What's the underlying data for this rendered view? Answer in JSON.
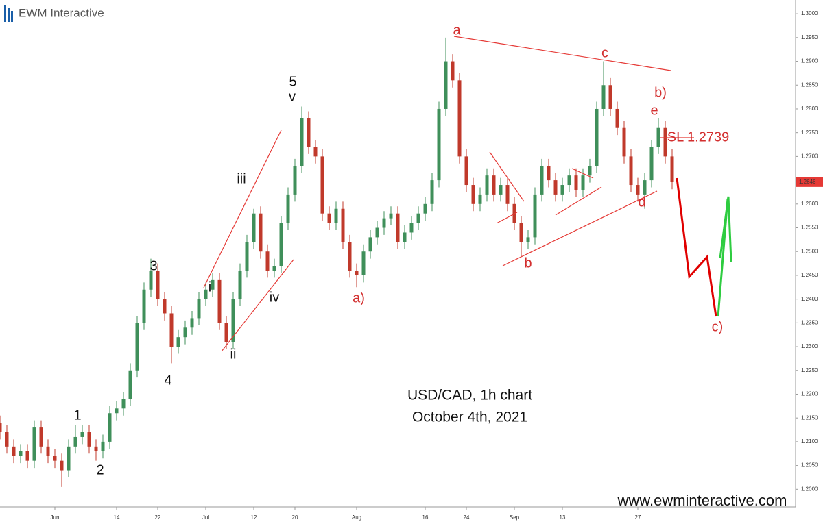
{
  "chart_data": {
    "type": "candlestick",
    "brand": "EWM Interactive",
    "title": "USD/CAD, 1h chart",
    "subtitle": "October 4th, 2021",
    "website": "www.ewminteractive.com",
    "up_color": "#3f8f5a",
    "down_color": "#c0392b",
    "xlim": [
      -8,
      108
    ],
    "xticks": [
      {
        "value": 0,
        "label": "Jun"
      },
      {
        "value": 9,
        "label": "14"
      },
      {
        "value": 15,
        "label": "22"
      },
      {
        "value": 22,
        "label": "Jul"
      },
      {
        "value": 29,
        "label": "12"
      },
      {
        "value": 35,
        "label": "20"
      },
      {
        "value": 44,
        "label": "Aug"
      },
      {
        "value": 54,
        "label": "16"
      },
      {
        "value": 60,
        "label": "24"
      },
      {
        "value": 67,
        "label": "Sep"
      },
      {
        "value": 74,
        "label": "13"
      },
      {
        "value": 85,
        "label": "27"
      }
    ],
    "ylim": [
      1.1963,
      1.3029
    ],
    "yticks": [
      {
        "value": 1.2,
        "label": "1.2000"
      },
      {
        "value": 1.205,
        "label": "1.2050"
      },
      {
        "value": 1.21,
        "label": "1.2100"
      },
      {
        "value": 1.215,
        "label": "1.2150"
      },
      {
        "value": 1.22,
        "label": "1.2200"
      },
      {
        "value": 1.225,
        "label": "1.2250"
      },
      {
        "value": 1.23,
        "label": "1.2300"
      },
      {
        "value": 1.235,
        "label": "1.2350"
      },
      {
        "value": 1.24,
        "label": "1.2400"
      },
      {
        "value": 1.245,
        "label": "1.2450"
      },
      {
        "value": 1.25,
        "label": "1.2500"
      },
      {
        "value": 1.255,
        "label": "1.2550"
      },
      {
        "value": 1.26,
        "label": "1.2600"
      },
      {
        "value": 1.265,
        "label": "1.2650"
      },
      {
        "value": 1.27,
        "label": "1.2700"
      },
      {
        "value": 1.275,
        "label": "1.2750"
      },
      {
        "value": 1.28,
        "label": "1.2800"
      },
      {
        "value": 1.285,
        "label": "1.2850"
      },
      {
        "value": 1.29,
        "label": "1.2900"
      },
      {
        "value": 1.295,
        "label": "1.2950"
      },
      {
        "value": 1.3,
        "label": "1.3000"
      }
    ],
    "x": [
      -8,
      -7,
      -6,
      -5,
      -4,
      -3,
      -2,
      -1,
      0,
      1,
      2,
      3,
      4,
      5,
      6,
      7,
      8,
      9,
      10,
      11,
      12,
      13,
      14,
      15,
      16,
      17,
      18,
      19,
      20,
      21,
      22,
      23,
      24,
      25,
      26,
      27,
      28,
      29,
      30,
      31,
      32,
      33,
      34,
      35,
      36,
      37,
      38,
      39,
      40,
      41,
      42,
      43,
      44,
      45,
      46,
      47,
      48,
      49,
      50,
      51,
      52,
      53,
      54,
      55,
      56,
      57,
      58,
      59,
      60,
      61,
      62,
      63,
      64,
      65,
      66,
      67,
      68,
      69,
      70,
      71,
      72,
      73,
      74,
      75,
      76,
      77,
      78,
      79,
      80,
      81,
      82,
      83,
      84,
      85,
      86,
      87,
      88,
      89,
      90
    ],
    "open": [
      1.214,
      1.212,
      1.209,
      1.207,
      1.208,
      1.206,
      1.213,
      1.209,
      1.207,
      1.206,
      1.204,
      1.209,
      1.211,
      1.212,
      1.209,
      1.208,
      1.21,
      1.216,
      1.217,
      1.219,
      1.225,
      1.235,
      1.242,
      1.246,
      1.24,
      1.237,
      1.23,
      1.232,
      1.234,
      1.236,
      1.24,
      1.242,
      1.244,
      1.235,
      1.231,
      1.24,
      1.246,
      1.252,
      1.258,
      1.25,
      1.246,
      1.247,
      1.256,
      1.262,
      1.268,
      1.278,
      1.272,
      1.27,
      1.258,
      1.256,
      1.259,
      1.252,
      1.246,
      1.245,
      1.25,
      1.253,
      1.255,
      1.257,
      1.258,
      1.252,
      1.254,
      1.256,
      1.258,
      1.26,
      1.265,
      1.28,
      1.29,
      1.286,
      1.27,
      1.264,
      1.26,
      1.262,
      1.266,
      1.262,
      1.264,
      1.26,
      1.256,
      1.252,
      1.253,
      1.262,
      1.268,
      1.265,
      1.262,
      1.264,
      1.266,
      1.263,
      1.266,
      1.268,
      1.28,
      1.285,
      1.28,
      1.276,
      1.27,
      1.264,
      1.262,
      1.265,
      1.272,
      1.276,
      1.27
    ],
    "high": [
      1.2155,
      1.2135,
      1.2105,
      1.2095,
      1.2095,
      1.2145,
      1.2145,
      1.2105,
      1.2085,
      1.2075,
      1.2105,
      1.2135,
      1.2135,
      1.2135,
      1.2105,
      1.2115,
      1.2175,
      1.2185,
      1.2205,
      1.2265,
      1.2365,
      1.2435,
      1.2485,
      1.2475,
      1.2415,
      1.2385,
      1.2335,
      1.2355,
      1.2375,
      1.2415,
      1.2435,
      1.2455,
      1.2455,
      1.2365,
      1.2415,
      1.2475,
      1.2535,
      1.259,
      1.2595,
      1.2515,
      1.2485,
      1.2575,
      1.2635,
      1.2695,
      1.2805,
      1.2795,
      1.2735,
      1.2715,
      1.2595,
      1.2605,
      1.2605,
      1.2535,
      1.2475,
      1.2515,
      1.2545,
      1.2565,
      1.2585,
      1.2595,
      1.2595,
      1.2555,
      1.2575,
      1.2595,
      1.2615,
      1.2665,
      1.2815,
      1.295,
      1.2915,
      1.2875,
      1.2715,
      1.2655,
      1.2635,
      1.2675,
      1.2675,
      1.2655,
      1.2655,
      1.2615,
      1.2575,
      1.2545,
      1.2635,
      1.2695,
      1.2695,
      1.2665,
      1.2655,
      1.2675,
      1.2675,
      1.2675,
      1.2695,
      1.2815,
      1.29,
      1.2865,
      1.2815,
      1.2775,
      1.2715,
      1.2655,
      1.2665,
      1.2735,
      1.278,
      1.2775,
      1.2715
    ],
    "low": [
      1.2105,
      1.2075,
      1.2055,
      1.2055,
      1.2045,
      1.2045,
      1.2075,
      1.2055,
      1.2045,
      1.2005,
      1.2025,
      1.2075,
      1.2095,
      1.2075,
      1.206,
      1.2065,
      1.2085,
      1.2145,
      1.2155,
      1.2175,
      1.2235,
      1.2335,
      1.2405,
      1.2385,
      1.2355,
      1.2265,
      1.2285,
      1.2305,
      1.2325,
      1.2345,
      1.2385,
      1.2405,
      1.2335,
      1.2295,
      1.2295,
      1.2385,
      1.2445,
      1.2505,
      1.2485,
      1.2445,
      1.2445,
      1.2455,
      1.2545,
      1.2605,
      1.2665,
      1.2705,
      1.2685,
      1.2565,
      1.2545,
      1.2545,
      1.2505,
      1.2445,
      1.2425,
      1.2435,
      1.2485,
      1.2515,
      1.2535,
      1.2555,
      1.2505,
      1.2505,
      1.2525,
      1.2545,
      1.2565,
      1.2585,
      1.2635,
      1.2785,
      1.2845,
      1.2685,
      1.2625,
      1.2585,
      1.2585,
      1.2605,
      1.2605,
      1.2605,
      1.2585,
      1.2545,
      1.249,
      1.2505,
      1.2515,
      1.2605,
      1.2635,
      1.2605,
      1.2605,
      1.2625,
      1.2615,
      1.2615,
      1.2645,
      1.2665,
      1.2785,
      1.2785,
      1.2745,
      1.2685,
      1.2625,
      1.2605,
      1.259,
      1.2635,
      1.2705,
      1.2685,
      1.2631
    ],
    "close": [
      1.212,
      1.209,
      1.207,
      1.208,
      1.206,
      1.213,
      1.209,
      1.207,
      1.206,
      1.204,
      1.209,
      1.211,
      1.212,
      1.209,
      1.208,
      1.21,
      1.216,
      1.217,
      1.219,
      1.225,
      1.235,
      1.242,
      1.246,
      1.24,
      1.237,
      1.23,
      1.232,
      1.234,
      1.236,
      1.24,
      1.242,
      1.244,
      1.235,
      1.231,
      1.24,
      1.246,
      1.252,
      1.258,
      1.25,
      1.246,
      1.247,
      1.256,
      1.262,
      1.268,
      1.278,
      1.272,
      1.27,
      1.258,
      1.256,
      1.259,
      1.252,
      1.246,
      1.245,
      1.25,
      1.253,
      1.255,
      1.257,
      1.258,
      1.252,
      1.254,
      1.256,
      1.258,
      1.26,
      1.265,
      1.28,
      1.29,
      1.286,
      1.27,
      1.264,
      1.26,
      1.262,
      1.266,
      1.262,
      1.264,
      1.26,
      1.256,
      1.252,
      1.253,
      1.262,
      1.268,
      1.265,
      1.262,
      1.264,
      1.266,
      1.263,
      1.266,
      1.268,
      1.28,
      1.285,
      1.28,
      1.276,
      1.27,
      1.264,
      1.262,
      1.265,
      1.272,
      1.276,
      1.27,
      1.2646
    ],
    "annotations": [
      {
        "text": "1",
        "color": "#111111"
      },
      {
        "text": "2",
        "color": "#111111"
      },
      {
        "text": "3",
        "color": "#111111"
      },
      {
        "text": "4",
        "color": "#111111"
      },
      {
        "text": "5",
        "color": "#111111"
      },
      {
        "text": "v",
        "color": "#111111"
      },
      {
        "text": "i",
        "color": "#111111"
      },
      {
        "text": "ii",
        "color": "#111111"
      },
      {
        "text": "iii",
        "color": "#111111"
      },
      {
        "text": "iv",
        "color": "#111111"
      },
      {
        "text": "a)",
        "color": "#d32f2f"
      },
      {
        "text": "a",
        "color": "#d32f2f"
      },
      {
        "text": "b",
        "color": "#d32f2f"
      },
      {
        "text": "c",
        "color": "#d32f2f"
      },
      {
        "text": "d",
        "color": "#d32f2f"
      },
      {
        "text": "e",
        "color": "#d32f2f"
      },
      {
        "text": "b)",
        "color": "#d32f2f"
      },
      {
        "text": "c)",
        "color": "#d32f2f"
      },
      {
        "text": "SL 1.2739",
        "color": "#d32f2f"
      }
    ]
  }
}
